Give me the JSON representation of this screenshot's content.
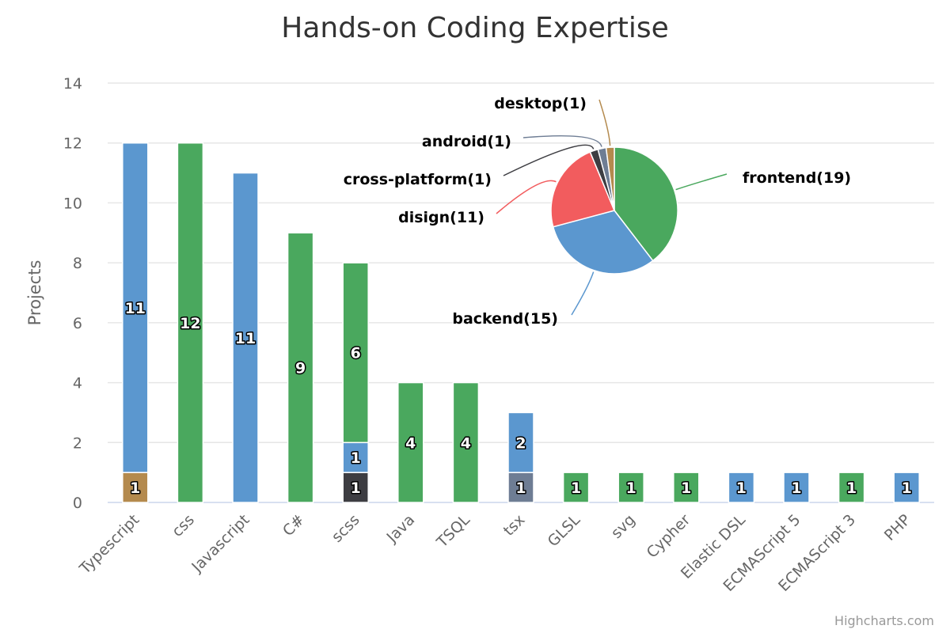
{
  "credits": "Highcharts.com",
  "colors": {
    "blue": "#5b97cf",
    "green": "#4aa85e",
    "brown": "#b48a4e",
    "dark": "#3d3d42",
    "slate": "#6e7d94",
    "red": "#f25c5e",
    "grid": "#e6e6e6",
    "axis": "#ccd6eb"
  },
  "chart_data": [
    {
      "type": "bar",
      "stacked": true,
      "title": "Hands-on Coding Expertise",
      "ylabel": "Projects",
      "xlabel": "",
      "ylim": [
        0,
        14
      ],
      "yticks": [
        0,
        2,
        4,
        6,
        8,
        10,
        12,
        14
      ],
      "grid": true,
      "categories": [
        "Typescript",
        "css",
        "Javascript",
        "C#",
        "scss",
        "Java",
        "TSQL",
        "tsx",
        "GLSL",
        "svg",
        "Cypher",
        "Elastic DSL",
        "ECMAScript 5",
        "ECMAScript 3",
        "PHP"
      ],
      "stacks": [
        [
          {
            "value": 1,
            "color": "#b48a4e"
          },
          {
            "value": 11,
            "color": "#5b97cf"
          }
        ],
        [
          {
            "value": 12,
            "color": "#4aa85e"
          }
        ],
        [
          {
            "value": 11,
            "color": "#5b97cf"
          }
        ],
        [
          {
            "value": 9,
            "color": "#4aa85e"
          }
        ],
        [
          {
            "value": 1,
            "color": "#3d3d42"
          },
          {
            "value": 1,
            "color": "#5b97cf"
          },
          {
            "value": 6,
            "color": "#4aa85e"
          }
        ],
        [
          {
            "value": 4,
            "color": "#4aa85e"
          }
        ],
        [
          {
            "value": 4,
            "color": "#4aa85e"
          }
        ],
        [
          {
            "value": 1,
            "color": "#6e7d94"
          },
          {
            "value": 2,
            "color": "#5b97cf"
          }
        ],
        [
          {
            "value": 1,
            "color": "#4aa85e"
          }
        ],
        [
          {
            "value": 1,
            "color": "#4aa85e"
          }
        ],
        [
          {
            "value": 1,
            "color": "#4aa85e"
          }
        ],
        [
          {
            "value": 1,
            "color": "#5b97cf"
          }
        ],
        [
          {
            "value": 1,
            "color": "#5b97cf"
          }
        ],
        [
          {
            "value": 1,
            "color": "#4aa85e"
          }
        ],
        [
          {
            "value": 1,
            "color": "#5b97cf"
          }
        ]
      ]
    },
    {
      "type": "pie",
      "slices": [
        {
          "label": "frontend(19)",
          "value": 19,
          "color": "#4aa85e"
        },
        {
          "label": "backend(15)",
          "value": 15,
          "color": "#5b97cf"
        },
        {
          "label": "disign(11)",
          "value": 11,
          "color": "#f25c5e"
        },
        {
          "label": "cross-platform(1)",
          "value": 1,
          "color": "#3d3d42"
        },
        {
          "label": "android(1)",
          "value": 1,
          "color": "#6e7d94"
        },
        {
          "label": "desktop(1)",
          "value": 1,
          "color": "#b48a4e"
        }
      ]
    }
  ]
}
